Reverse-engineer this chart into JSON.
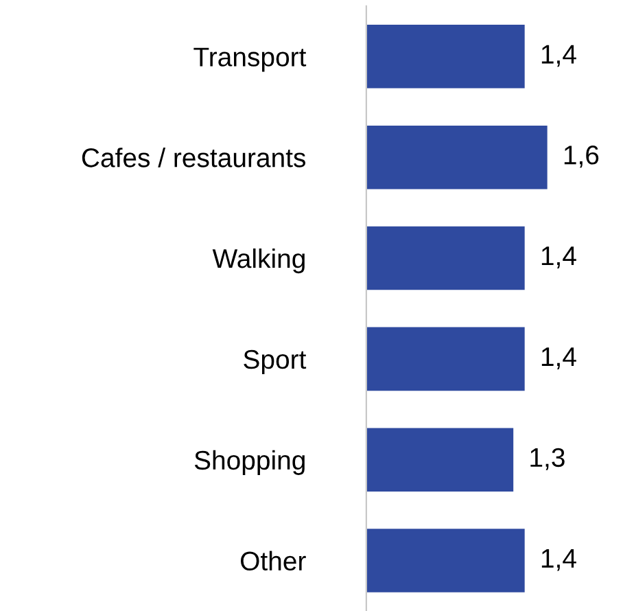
{
  "chart_data": {
    "type": "bar",
    "orientation": "horizontal",
    "categories": [
      "Transport",
      "Cafes / restaurants",
      "Walking",
      "Sport",
      "Shopping",
      "Other"
    ],
    "values": [
      1.4,
      1.6,
      1.4,
      1.4,
      1.3,
      1.4
    ],
    "value_labels": [
      "1,4",
      "1,6",
      "1,4",
      "1,4",
      "1,3",
      "1,4"
    ],
    "color": "#2f4a9f",
    "tick_labels": "y",
    "grid": false,
    "legend": false
  }
}
